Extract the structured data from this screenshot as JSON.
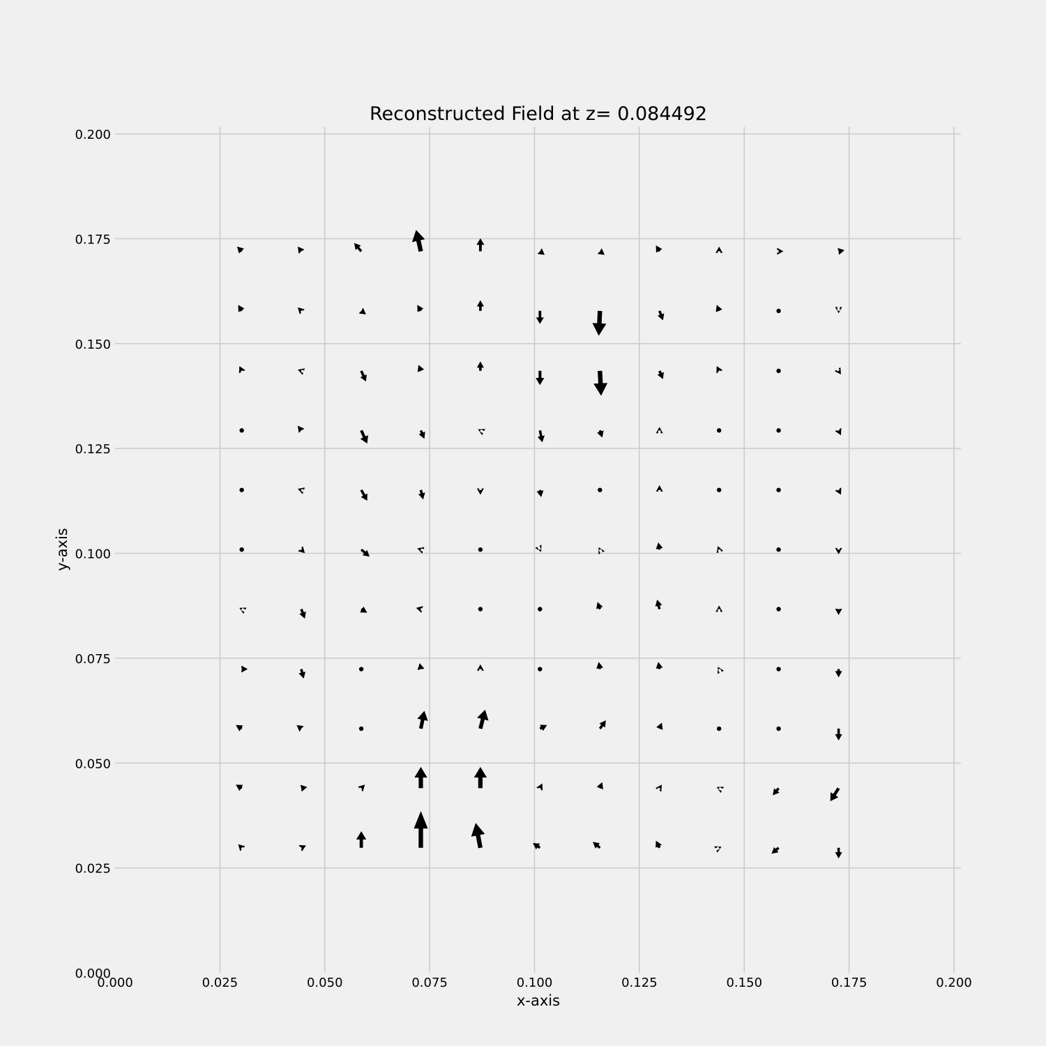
{
  "chart_data": {
    "type": "quiver",
    "title": "Reconstructed Field at z= 0.084492",
    "xlabel": "x-axis",
    "ylabel": "y-axis",
    "xlim": [
      0.0,
      0.2
    ],
    "ylim": [
      0.0,
      0.2
    ],
    "xticks": [
      0.0,
      0.025,
      0.05,
      0.075,
      0.1,
      0.125,
      0.15,
      0.175,
      0.2
    ],
    "yticks": [
      0.0,
      0.025,
      0.05,
      0.075,
      0.1,
      0.125,
      0.15,
      0.175,
      0.2
    ],
    "xtick_labels": [
      "0.000",
      "0.025",
      "0.050",
      "0.075",
      "0.100",
      "0.125",
      "0.150",
      "0.175",
      "0.200"
    ],
    "ytick_labels": [
      "0.000",
      "0.025",
      "0.050",
      "0.075",
      "0.100",
      "0.125",
      "0.150",
      "0.175",
      "0.200"
    ],
    "grid": true,
    "x": [
      0.0302,
      0.0444,
      0.0587,
      0.0729,
      0.0871,
      0.1013,
      0.1156,
      0.1298,
      0.144,
      0.1582,
      0.1725
    ],
    "y": [
      0.172,
      0.1578,
      0.1435,
      0.1293,
      0.1151,
      0.1009,
      0.0867,
      0.0724,
      0.0582,
      0.044,
      0.0298
    ],
    "u": [
      [
        -0.4,
        -0.3,
        -0.6,
        -0.4,
        0.0,
        0.4,
        0.4,
        -0.3,
        0.0,
        0.4,
        0.5
      ],
      [
        -0.3,
        -0.3,
        0.4,
        -0.3,
        0.0,
        0.0,
        -0.1,
        0.3,
        -0.2,
        0.0,
        0.0
      ],
      [
        -0.2,
        -0.3,
        0.4,
        -0.2,
        0.0,
        0.0,
        0.1,
        0.3,
        -0.2,
        0.0,
        0.2
      ],
      [
        0.0,
        -0.3,
        0.5,
        0.3,
        -0.2,
        0.2,
        0.2,
        0.0,
        0.0,
        0.0,
        0.2
      ],
      [
        0.0,
        -0.3,
        0.5,
        0.2,
        0.0,
        0.1,
        0.0,
        0.0,
        0.0,
        0.0,
        0.2
      ],
      [
        0.0,
        0.3,
        0.7,
        -0.3,
        0.0,
        0.1,
        -0.1,
        -0.1,
        -0.1,
        0.0,
        0.0
      ],
      [
        -0.2,
        0.3,
        0.5,
        -0.4,
        0.0,
        0.0,
        -0.2,
        -0.2,
        0.0,
        0.0,
        0.0
      ],
      [
        0.5,
        0.2,
        0.0,
        -0.1,
        0.0,
        0.0,
        -0.1,
        -0.1,
        -0.1,
        0.0,
        0.0
      ],
      [
        -0.5,
        -0.4,
        0.0,
        0.3,
        0.4,
        0.6,
        0.5,
        0.2,
        0.0,
        0.0,
        0.0
      ],
      [
        -0.5,
        0.5,
        0.3,
        0.0,
        0.0,
        0.2,
        0.2,
        0.2,
        -0.2,
        -0.5,
        -0.7
      ],
      [
        -0.3,
        0.4,
        0.0,
        0.0,
        -0.4,
        -0.6,
        -0.6,
        -0.3,
        0.2,
        -0.6,
        0.0
      ]
    ],
    "v": [
      [
        0.4,
        0.4,
        0.7,
        1.8,
        1.1,
        -0.3,
        -0.3,
        0.5,
        0.4,
        0.0,
        0.1
      ],
      [
        0.5,
        0.3,
        -0.3,
        0.5,
        0.9,
        -1.1,
        -2.1,
        -0.8,
        0.5,
        0.0,
        -0.2
      ],
      [
        0.4,
        0.1,
        -0.9,
        0.5,
        0.8,
        -1.2,
        -2.1,
        -0.7,
        0.4,
        0.0,
        -0.3
      ],
      [
        0.0,
        0.4,
        -1.1,
        -0.7,
        0.1,
        -1.0,
        -0.6,
        0.3,
        0.0,
        0.0,
        -0.4
      ],
      [
        0.0,
        0.1,
        -0.9,
        -0.8,
        -0.4,
        -0.6,
        0.0,
        0.4,
        0.0,
        0.0,
        -0.4
      ],
      [
        0.0,
        -0.3,
        -0.6,
        0.1,
        0.0,
        -0.2,
        0.2,
        0.6,
        0.3,
        0.0,
        -0.4
      ],
      [
        0.1,
        -0.8,
        -0.3,
        0.1,
        0.0,
        0.0,
        0.6,
        0.8,
        0.3,
        0.0,
        -0.5
      ],
      [
        0.0,
        -0.8,
        0.0,
        0.5,
        0.4,
        0.0,
        0.6,
        0.6,
        0.2,
        0.0,
        -0.7
      ],
      [
        0.3,
        0.3,
        0.0,
        1.5,
        1.6,
        0.3,
        0.7,
        0.5,
        0.0,
        0.0,
        -1.0
      ],
      [
        0.3,
        0.1,
        0.3,
        1.8,
        1.8,
        0.4,
        0.5,
        0.3,
        0.1,
        -0.6,
        -1.1
      ],
      [
        0.3,
        0.2,
        1.4,
        3.1,
        2.1,
        0.4,
        0.5,
        0.6,
        0.1,
        -0.5,
        -0.9
      ]
    ]
  }
}
